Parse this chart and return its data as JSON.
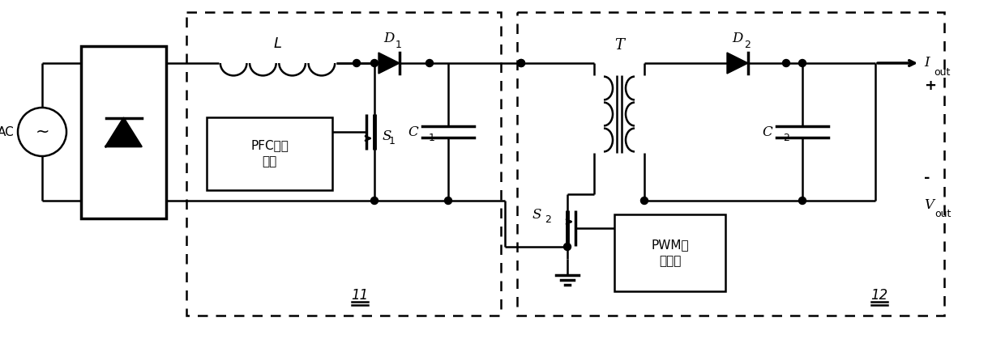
{
  "fig_width": 12.4,
  "fig_height": 4.19,
  "dpi": 100,
  "bg_color": "#ffffff",
  "lc": "#000000",
  "lw": 1.8,
  "lw2": 2.5,
  "label_AC": "AC",
  "label_L": "L",
  "label_D1": "D",
  "label_D1_sub": "1",
  "label_D2": "D",
  "label_D2_sub": "2",
  "label_T": "T",
  "label_C1": "C",
  "label_C1_sub": "1",
  "label_C2": "C",
  "label_C2_sub": "2",
  "label_S1": "S",
  "label_S1_sub": "1",
  "label_S2": "S",
  "label_S2_sub": "2",
  "label_Iout": "I",
  "label_Iout_sub": "out",
  "label_Vout": "V",
  "label_Vout_sub": "out",
  "label_PFC": "PFC控制\n电路",
  "label_PWM": "PWM控\n制电路",
  "label_11": "11",
  "label_12": "12",
  "label_plus": "+",
  "label_minus": "-"
}
